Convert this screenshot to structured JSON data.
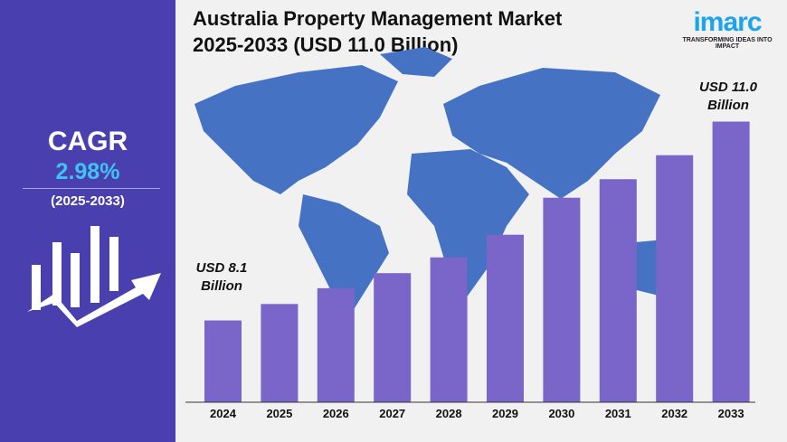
{
  "title_line1": "Australia Property Management Market",
  "title_line2": "2025-2033 (USD 11.0 Billion)",
  "logo": {
    "text": "imarc",
    "tagline": "TRANSFORMING IDEAS INTO IMPACT"
  },
  "cagr": {
    "label": "CAGR",
    "value": "2.98%",
    "period": "(2025-2033)"
  },
  "colors": {
    "sidebar": "#4a3fae",
    "bar": "#7a65c9",
    "map": "#4672c4",
    "cagr_value": "#3ec3f2"
  },
  "chart_data": {
    "type": "bar",
    "title": "Australia Property Management Market 2025-2033 (USD 11.0 Billion)",
    "categories": [
      "2024",
      "2025",
      "2026",
      "2027",
      "2028",
      "2029",
      "2030",
      "2031",
      "2032",
      "2033"
    ],
    "values": [
      8.1,
      8.34,
      8.57,
      8.79,
      9.02,
      9.35,
      9.89,
      10.16,
      10.51,
      11.0
    ],
    "unit": "USD Billion",
    "annotations": {
      "start": {
        "line1": "USD 8.1",
        "line2": "Billion"
      },
      "end": {
        "line1": "USD 11.0",
        "line2": "Billion"
      }
    },
    "grid": false
  }
}
